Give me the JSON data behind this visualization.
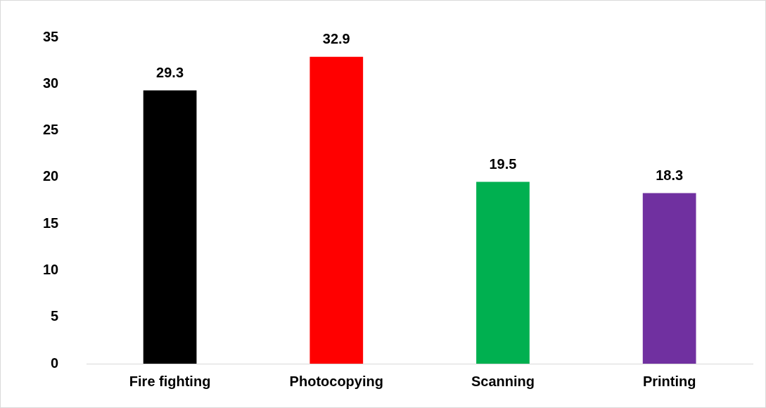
{
  "chart_data": {
    "type": "bar",
    "categories": [
      "Fire fighting",
      "Photocopying",
      "Scanning",
      "Printing"
    ],
    "values": [
      29.3,
      32.9,
      19.5,
      18.3
    ],
    "colors": [
      "#000000",
      "#ff0000",
      "#00b050",
      "#7030a0"
    ],
    "ylim": [
      0,
      35
    ],
    "yticks": [
      0,
      5,
      10,
      15,
      20,
      25,
      30,
      35
    ],
    "grid": false,
    "legend": false,
    "data_labels": true
  }
}
